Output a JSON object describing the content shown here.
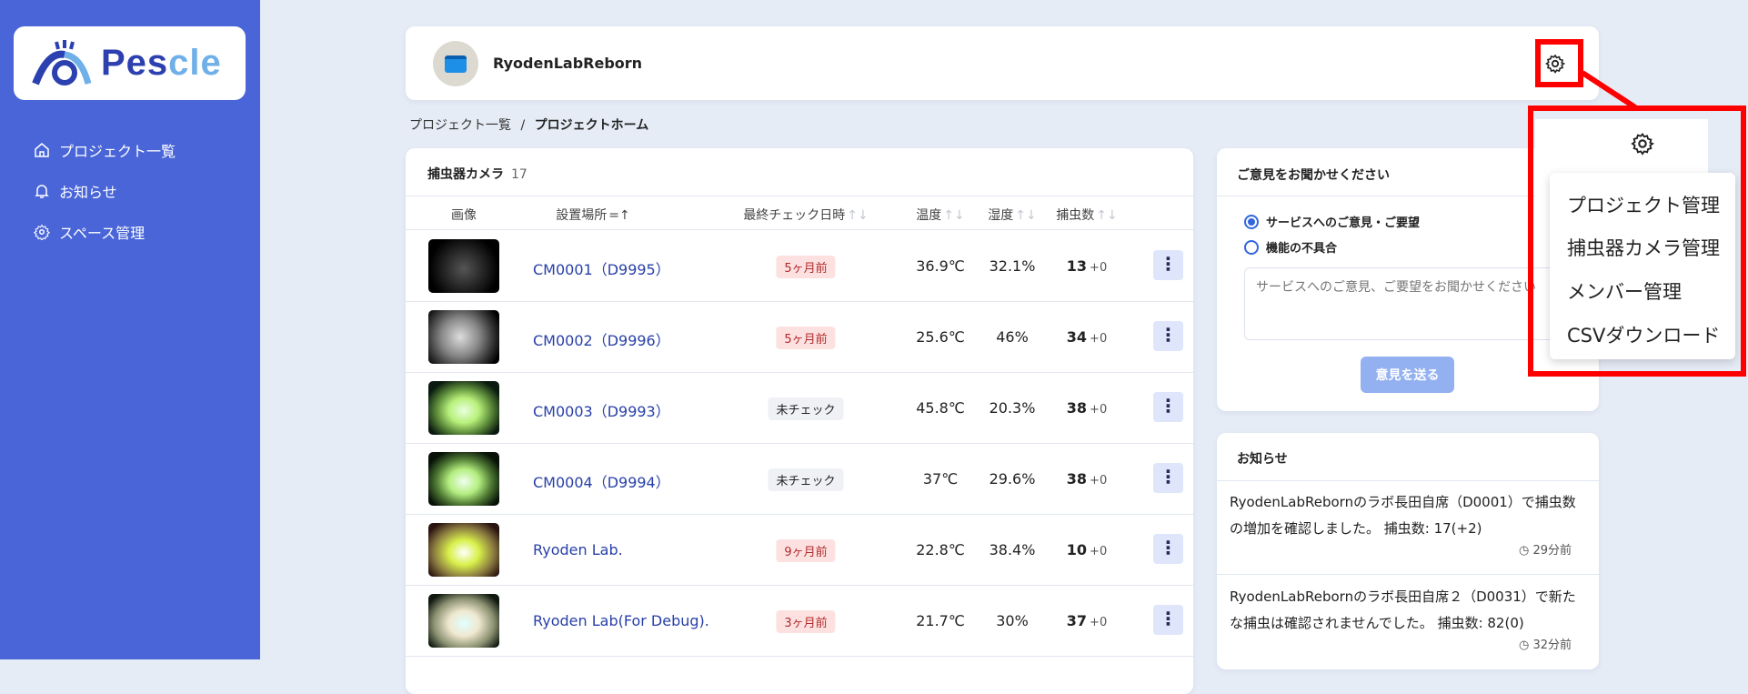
{
  "brand": {
    "logo_text_a": "Pes",
    "logo_text_b": "cle",
    "colors": {
      "sidebar": "#4965d8",
      "accent": "#3366dd",
      "highlight": "#ff0000"
    }
  },
  "sidebar": {
    "items": [
      {
        "label": "プロジェクト一覧",
        "icon": "home-icon"
      },
      {
        "label": "お知らせ",
        "icon": "bell-icon"
      },
      {
        "label": "スペース管理",
        "icon": "gear-icon"
      }
    ]
  },
  "header": {
    "project_name": "RyodenLabReborn"
  },
  "breadcrumb": {
    "parent": "プロジェクト一覧",
    "separator": "/",
    "current": "プロジェクトホーム"
  },
  "cameras": {
    "title": "捕虫器カメラ",
    "count": "17",
    "columns": [
      "画像",
      "設置場所",
      "最終チェック日時",
      "温度",
      "湿度",
      "捕虫数"
    ],
    "sort_asc": "=↑",
    "sort_none": "↑↓",
    "rows": [
      {
        "location": "CM0001（D9995）",
        "last_check": "5ヶ月前",
        "status": "red",
        "temp": "36.9℃",
        "humidity": "32.1%",
        "count": "13",
        "delta": "+0"
      },
      {
        "location": "CM0002（D9996）",
        "last_check": "5ヶ月前",
        "status": "red",
        "temp": "25.6℃",
        "humidity": "46%",
        "count": "34",
        "delta": "+0"
      },
      {
        "location": "CM0003（D9993）",
        "last_check": "未チェック",
        "status": "gray",
        "temp": "45.8℃",
        "humidity": "20.3%",
        "count": "38",
        "delta": "+0"
      },
      {
        "location": "CM0004（D9994）",
        "last_check": "未チェック",
        "status": "gray",
        "temp": "37℃",
        "humidity": "29.6%",
        "count": "38",
        "delta": "+0"
      },
      {
        "location": "Ryoden Lab.",
        "last_check": "9ヶ月前",
        "status": "red",
        "temp": "22.8℃",
        "humidity": "38.4%",
        "count": "10",
        "delta": "+0"
      },
      {
        "location": "Ryoden Lab(For Debug).",
        "last_check": "3ヶ月前",
        "status": "red",
        "temp": "21.7℃",
        "humidity": "30%",
        "count": "37",
        "delta": "+0"
      }
    ]
  },
  "feedback": {
    "title": "ご意見をお聞かせください",
    "options": [
      "サービスへのご意見・ご要望",
      "機能の不具合"
    ],
    "selected": 0,
    "placeholder": "サービスへのご意見、ご要望をお聞かせください",
    "submit": "意見を送る"
  },
  "news": {
    "title": "お知らせ",
    "items": [
      {
        "text": "RyodenLabRebornのラボ長田自席（D0001）で捕虫数の増加を確認しました。 捕虫数: 17(+2)",
        "time": "29分前"
      },
      {
        "text": "RyodenLabRebornのラボ長田自席２（D0031）で新たな捕虫は確認されませんでした。 捕虫数: 82(0)",
        "time": "32分前"
      }
    ]
  },
  "settings_menu": {
    "items": [
      "プロジェクト管理",
      "捕虫器カメラ管理",
      "メンバー管理",
      "CSVダウンロード"
    ]
  }
}
